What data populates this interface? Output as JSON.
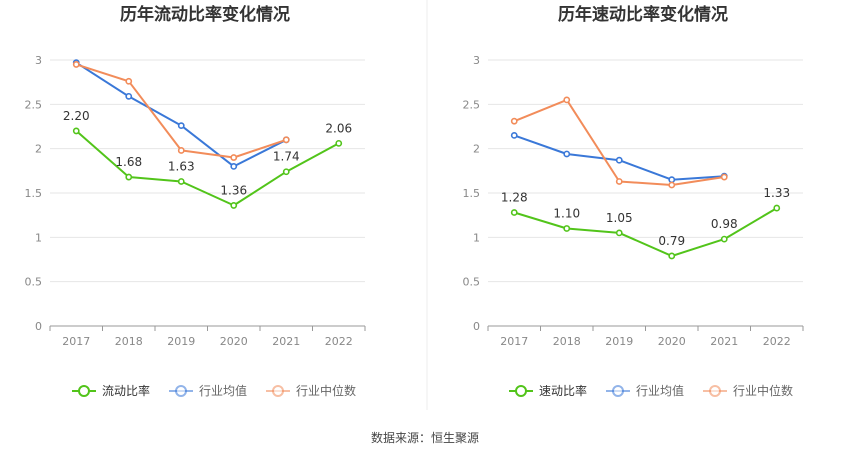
{
  "source": "数据来源：恒生聚源",
  "chart_data": [
    {
      "type": "line",
      "title": "历年流动比率变化情况",
      "categories": [
        "2017",
        "2018",
        "2019",
        "2020",
        "2021",
        "2022"
      ],
      "y_ticks": [
        "0",
        "0.5",
        "1",
        "1.5",
        "2",
        "2.5",
        "3"
      ],
      "ylim": [
        0,
        3
      ],
      "grid": true,
      "legend_position": "bottom",
      "series": [
        {
          "name": "流动比率",
          "color": "#52c41a",
          "values": [
            2.2,
            1.68,
            1.63,
            1.36,
            1.74,
            2.06
          ],
          "labels": [
            "2.20",
            "1.68",
            "1.63",
            "1.36",
            "1.74",
            "2.06"
          ]
        },
        {
          "name": "行业均值",
          "color": "#3a78d8",
          "values": [
            2.97,
            2.59,
            2.26,
            1.8,
            2.1,
            null
          ]
        },
        {
          "name": "行业中位数",
          "color": "#f28c5a",
          "values": [
            2.95,
            2.76,
            1.98,
            1.9,
            2.1,
            null
          ]
        }
      ]
    },
    {
      "type": "line",
      "title": "历年速动比率变化情况",
      "categories": [
        "2017",
        "2018",
        "2019",
        "2020",
        "2021",
        "2022"
      ],
      "y_ticks": [
        "0",
        "0.5",
        "1",
        "1.5",
        "2",
        "2.5",
        "3"
      ],
      "ylim": [
        0,
        3
      ],
      "grid": true,
      "legend_position": "bottom",
      "series": [
        {
          "name": "速动比率",
          "color": "#52c41a",
          "values": [
            1.28,
            1.1,
            1.05,
            0.79,
            0.98,
            1.33
          ],
          "labels": [
            "1.28",
            "1.10",
            "1.05",
            "0.79",
            "0.98",
            "1.33"
          ]
        },
        {
          "name": "行业均值",
          "color": "#3a78d8",
          "values": [
            2.15,
            1.94,
            1.87,
            1.65,
            1.69,
            null
          ]
        },
        {
          "name": "行业中位数",
          "color": "#f28c5a",
          "values": [
            2.31,
            2.55,
            1.63,
            1.59,
            1.68,
            null
          ]
        }
      ]
    }
  ]
}
